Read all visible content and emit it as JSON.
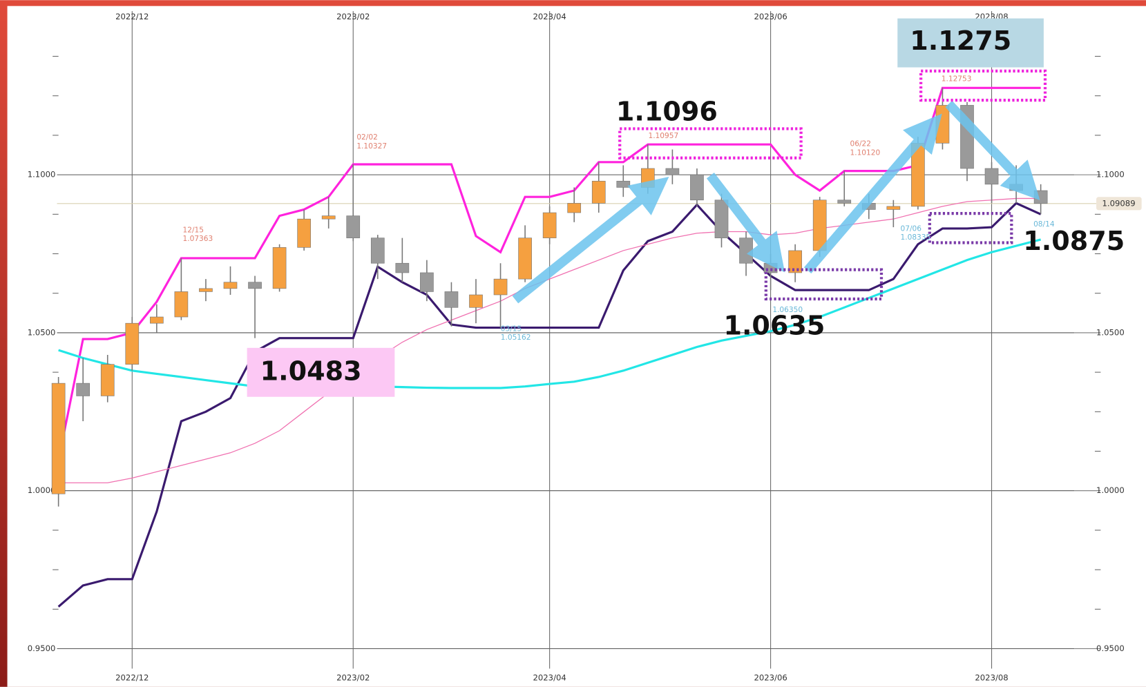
{
  "chart_data": {
    "type": "candlestick",
    "categories": [
      null,
      null,
      null,
      "2022/12",
      null,
      null,
      null,
      null,
      null,
      null,
      null,
      null,
      "2023/02",
      null,
      null,
      null,
      null,
      null,
      null,
      null,
      "2023/04",
      null,
      null,
      null,
      null,
      null,
      null,
      null,
      null,
      "2023/06",
      null,
      null,
      null,
      null,
      null,
      null,
      null,
      null,
      "2023/08",
      null,
      null
    ],
    "open": [
      0.999,
      1.034,
      1.03,
      1.04,
      1.053,
      1.055,
      1.063,
      1.064,
      1.066,
      1.064,
      1.077,
      1.086,
      1.087,
      1.08,
      1.072,
      1.069,
      1.063,
      1.058,
      1.062,
      1.067,
      1.08,
      1.088,
      1.091,
      1.098,
      1.096,
      1.102,
      1.1,
      1.092,
      1.08,
      1.072,
      1.069,
      1.076,
      1.092,
      1.091,
      1.089,
      1.09,
      1.11,
      1.122,
      1.102,
      1.097,
      1.095
    ],
    "high": [
      1.036,
      1.042,
      1.043,
      1.055,
      1.059,
      1.0736,
      1.067,
      1.071,
      1.068,
      1.078,
      1.089,
      1.093,
      1.1033,
      1.081,
      1.08,
      1.073,
      1.066,
      1.067,
      1.072,
      1.084,
      1.09,
      1.096,
      1.104,
      1.103,
      1.1096,
      1.108,
      1.102,
      1.094,
      1.082,
      1.075,
      1.078,
      1.093,
      1.1012,
      1.094,
      1.092,
      1.112,
      1.1275,
      1.123,
      1.104,
      1.103,
      1.097
    ],
    "low": [
      0.995,
      1.022,
      1.028,
      1.038,
      1.05,
      1.054,
      1.06,
      1.062,
      1.0483,
      1.063,
      1.076,
      1.083,
      1.079,
      1.067,
      1.066,
      1.06,
      1.052,
      1.053,
      1.0516,
      1.066,
      1.078,
      1.085,
      1.088,
      1.093,
      1.094,
      1.097,
      1.09,
      1.077,
      1.068,
      1.0635,
      1.066,
      1.074,
      1.09,
      1.086,
      1.0834,
      1.089,
      1.108,
      1.098,
      1.091,
      1.091,
      1.0875
    ],
    "close": [
      1.034,
      1.03,
      1.04,
      1.053,
      1.055,
      1.063,
      1.064,
      1.066,
      1.064,
      1.077,
      1.086,
      1.087,
      1.08,
      1.072,
      1.069,
      1.063,
      1.058,
      1.062,
      1.067,
      1.08,
      1.088,
      1.091,
      1.098,
      1.096,
      1.102,
      1.1,
      1.092,
      1.08,
      1.072,
      1.069,
      1.076,
      1.092,
      1.091,
      1.089,
      1.09,
      1.11,
      1.122,
      1.102,
      1.097,
      1.095,
      1.0909
    ],
    "up_color": "#f5a040",
    "down_color": "#9a9a9a",
    "series": [
      {
        "color": "#ff22dd",
        "values": [
          1.0096,
          1.048,
          1.048,
          1.05,
          1.0598,
          1.0736,
          1.0736,
          1.0736,
          1.0736,
          1.087,
          1.089,
          1.093,
          1.1033,
          1.1033,
          1.1033,
          1.1033,
          1.1033,
          1.0806,
          1.0755,
          1.093,
          1.093,
          1.095,
          1.104,
          1.104,
          1.1096,
          1.1096,
          1.1096,
          1.1096,
          1.1096,
          1.1096,
          1.1,
          1.095,
          1.1012,
          1.1012,
          1.1012,
          1.103,
          1.1275,
          1.1275,
          1.1275,
          1.1275,
          1.1275
        ]
      },
      {
        "color": "#3a1a6e",
        "values": [
          0.9633,
          0.97,
          0.972,
          0.972,
          0.9934,
          1.022,
          1.025,
          1.0293,
          1.044,
          1.0483,
          1.0483,
          1.0483,
          1.0483,
          1.0709,
          1.066,
          1.062,
          1.0526,
          1.0516,
          1.0516,
          1.0516,
          1.0516,
          1.0516,
          1.0516,
          1.0697,
          1.079,
          1.082,
          1.0905,
          1.082,
          1.075,
          1.068,
          1.0635,
          1.0635,
          1.0635,
          1.0635,
          1.067,
          1.078,
          1.083,
          1.083,
          1.0834,
          1.091,
          1.0875
        ]
      },
      {
        "color": "#22e6e6",
        "values": [
          1.0445,
          1.042,
          1.04,
          1.038,
          1.037,
          1.036,
          1.035,
          1.034,
          1.033,
          1.0327,
          1.0325,
          1.0325,
          1.0325,
          1.033,
          1.0328,
          1.0326,
          1.0325,
          1.0325,
          1.0325,
          1.033,
          1.0338,
          1.0345,
          1.036,
          1.038,
          1.0405,
          1.043,
          1.0455,
          1.0475,
          1.049,
          1.0505,
          1.0525,
          1.055,
          1.058,
          1.061,
          1.064,
          1.067,
          1.07,
          1.073,
          1.0755,
          1.0775,
          1.0795
        ]
      },
      {
        "color": "#f070b0",
        "values": [
          1.0025,
          1.0025,
          1.0025,
          1.004,
          1.006,
          1.008,
          1.01,
          1.012,
          1.015,
          1.019,
          1.025,
          1.031,
          1.037,
          1.042,
          1.047,
          1.051,
          1.054,
          1.057,
          1.06,
          1.064,
          1.067,
          1.07,
          1.073,
          1.076,
          1.078,
          1.08,
          1.0815,
          1.082,
          1.082,
          1.081,
          1.0815,
          1.083,
          1.084,
          1.085,
          1.086,
          1.088,
          1.09,
          1.0915,
          1.092,
          1.0925,
          1.0925
        ]
      }
    ],
    "ylim": [
      0.9437,
      1.1518
    ],
    "yticks": [
      {
        "value": 0.95,
        "label": "0.9500"
      },
      {
        "value": 1.0,
        "label": "1.0000"
      },
      {
        "value": 1.05,
        "label": "1.0500"
      },
      {
        "value": 1.1,
        "label": "1.1000"
      }
    ],
    "y_minor_ticks": [
      0.9625,
      0.975,
      0.9875,
      1.0125,
      1.025,
      1.0375,
      1.0625,
      1.075,
      1.0875,
      1.1125,
      1.125,
      1.1375
    ],
    "grid": true,
    "last_price": {
      "value": 1.09089,
      "label": "1.09089"
    },
    "point_labels": [
      {
        "date": "12/15",
        "price": "1.07363"
      },
      {
        "date": "02/02",
        "price": "1.10327"
      },
      {
        "date": "03/15",
        "price": "1.05162"
      },
      {
        "price": "1.10957"
      },
      {
        "price": "1.06350"
      },
      {
        "date": "06/22",
        "price": "1.10120"
      },
      {
        "date": "07/06",
        "price": "1.08335"
      },
      {
        "price": "1.12753"
      },
      {
        "date": "08/14"
      }
    ],
    "annotations": [
      "1.1275",
      "1.1096",
      "1.0635",
      "1.0483",
      "1.0875"
    ]
  }
}
